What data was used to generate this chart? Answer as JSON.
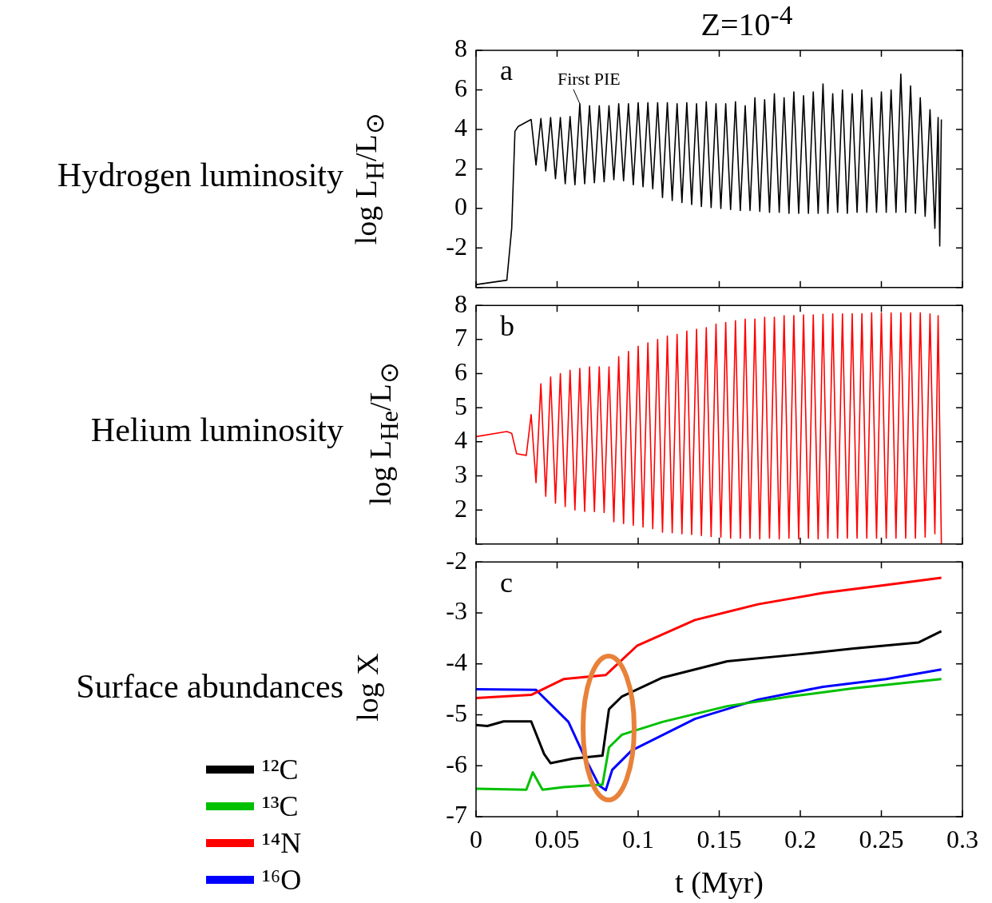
{
  "chart_data": [
    {
      "type": "line",
      "title": "Z=10$^{-4}$",
      "ylabel": "log L$_{H}$/L$_{⊙}$",
      "annotations": [
        "Hydrogen luminosity",
        "a",
        {
          "text": "First PIE",
          "x": 0.064,
          "y": 5.3
        }
      ],
      "xlim": [
        0,
        0.3
      ],
      "xticks": [
        0,
        0.05,
        0.1,
        0.15,
        0.2,
        0.25,
        0.3
      ],
      "ylim": [
        -4,
        8
      ],
      "yticks": [
        {
          "value": -4,
          "label": null
        },
        -2,
        0,
        2,
        4,
        6,
        8
      ],
      "tick_labels": "y",
      "series": [
        {
          "color": "#000000",
          "x": [
            0,
            0.019,
            0.022,
            0.024,
            0.026,
            0.031,
            0.034,
            0.037,
            0.04,
            0.043,
            0.046,
            0.049,
            0.052,
            0.055,
            0.058,
            0.061,
            0.064,
            0.067,
            0.07,
            0.073,
            0.076,
            0.079,
            0.082,
            0.085,
            0.088,
            0.091,
            0.094,
            0.097,
            0.1,
            0.103,
            0.106,
            0.109,
            0.112,
            0.115,
            0.118,
            0.121,
            0.124,
            0.127,
            0.13,
            0.133,
            0.136,
            0.139,
            0.142,
            0.145,
            0.148,
            0.151,
            0.154,
            0.157,
            0.16,
            0.163,
            0.166,
            0.169,
            0.172,
            0.175,
            0.178,
            0.181,
            0.184,
            0.187,
            0.19,
            0.193,
            0.196,
            0.199,
            0.202,
            0.205,
            0.208,
            0.211,
            0.214,
            0.217,
            0.22,
            0.223,
            0.226,
            0.229,
            0.232,
            0.235,
            0.238,
            0.241,
            0.244,
            0.247,
            0.25,
            0.253,
            0.256,
            0.259,
            0.262,
            0.265,
            0.268,
            0.271,
            0.274,
            0.277,
            0.28,
            0.283,
            0.285,
            0.286,
            0.287
          ],
          "values": [
            -3.85,
            -3.63,
            -1.0,
            3.9,
            4.15,
            4.37,
            4.5,
            2.2,
            4.55,
            1.9,
            4.6,
            1.5,
            4.6,
            1.25,
            4.65,
            1.2,
            5.3,
            1.25,
            5.2,
            1.3,
            5.2,
            1.35,
            5.2,
            1.45,
            5.3,
            1.4,
            5.3,
            1.2,
            5.35,
            1.1,
            5.35,
            1.0,
            5.35,
            0.55,
            5.35,
            0.4,
            5.3,
            0.3,
            5.35,
            0.2,
            5.3,
            0.1,
            5.4,
            0.05,
            5.3,
            0,
            5.3,
            -0.05,
            5.4,
            -0.1,
            5.2,
            -0.1,
            5.6,
            -0.15,
            5.5,
            -0.2,
            5.8,
            -0.2,
            5.6,
            -0.25,
            5.9,
            -0.25,
            5.7,
            -0.25,
            5.9,
            -0.25,
            6.3,
            -0.25,
            5.8,
            -0.2,
            6,
            -0.25,
            5.8,
            -0.2,
            6,
            -0.2,
            5.6,
            -0.2,
            5.9,
            -0.2,
            6,
            -0.2,
            6.8,
            -0.2,
            6.2,
            -0.25,
            5.6,
            -0.4,
            5,
            -1,
            4.6,
            -1.9,
            4.5
          ]
        }
      ]
    },
    {
      "type": "line",
      "ylabel": "log L$_{He}$/L$_{⊙}$",
      "annotations": [
        "Helium luminosity",
        "b"
      ],
      "xlim": [
        0,
        0.3
      ],
      "xticks": [
        0,
        0.05,
        0.1,
        0.15,
        0.2,
        0.25,
        0.3
      ],
      "ylim": [
        1,
        8
      ],
      "yticks": [
        {
          "value": 1,
          "label": null
        },
        2,
        3,
        4,
        5,
        6,
        7,
        8
      ],
      "tick_labels": "y",
      "series": [
        {
          "color": "#ff0000",
          "x": [
            0,
            0.019,
            0.022,
            0.025,
            0.031,
            0.034,
            0.037,
            0.04,
            0.043,
            0.046,
            0.049,
            0.052,
            0.055,
            0.058,
            0.061,
            0.064,
            0.067,
            0.07,
            0.073,
            0.076,
            0.079,
            0.082,
            0.085,
            0.088,
            0.091,
            0.094,
            0.097,
            0.1,
            0.103,
            0.106,
            0.109,
            0.112,
            0.115,
            0.118,
            0.121,
            0.124,
            0.127,
            0.13,
            0.133,
            0.136,
            0.139,
            0.142,
            0.145,
            0.148,
            0.151,
            0.154,
            0.157,
            0.16,
            0.163,
            0.166,
            0.169,
            0.172,
            0.175,
            0.178,
            0.181,
            0.184,
            0.187,
            0.19,
            0.193,
            0.196,
            0.199,
            0.202,
            0.205,
            0.208,
            0.211,
            0.214,
            0.217,
            0.22,
            0.223,
            0.226,
            0.229,
            0.232,
            0.235,
            0.238,
            0.241,
            0.244,
            0.247,
            0.25,
            0.253,
            0.256,
            0.259,
            0.262,
            0.265,
            0.268,
            0.271,
            0.274,
            0.277,
            0.28,
            0.283,
            0.285,
            0.287
          ],
          "values": [
            4.15,
            4.3,
            4.25,
            3.65,
            3.6,
            4.8,
            2.8,
            5.7,
            2.4,
            5.9,
            2.2,
            6.0,
            2.1,
            6.1,
            2.0,
            6.15,
            1.96,
            6.2,
            1.95,
            6.2,
            1.92,
            6.2,
            1.65,
            6.5,
            1.6,
            6.65,
            1.55,
            6.8,
            1.5,
            6.9,
            1.45,
            7.0,
            1.35,
            7.1,
            1.33,
            7.15,
            1.3,
            7.25,
            1.28,
            7.3,
            1.25,
            7.35,
            1.22,
            7.45,
            1.2,
            7.5,
            1.17,
            7.55,
            1.17,
            7.6,
            1.17,
            7.6,
            1.15,
            7.65,
            1.17,
            7.65,
            1.15,
            7.7,
            1.17,
            7.7,
            1.15,
            7.72,
            1.17,
            7.72,
            1.15,
            7.74,
            1.17,
            7.75,
            1.17,
            7.75,
            1.17,
            7.76,
            1.17,
            7.76,
            1.17,
            7.78,
            1.17,
            7.78,
            1.17,
            7.78,
            1.17,
            7.78,
            1.17,
            7.78,
            1.17,
            7.78,
            1.2,
            7.75,
            1.3,
            7.7,
            1.0
          ]
        }
      ]
    },
    {
      "type": "line",
      "xlabel": "t (Myr)",
      "ylabel": "log X",
      "annotations": [
        "Surface abundances",
        "c"
      ],
      "xlim": [
        0,
        0.3
      ],
      "xticks": [
        0,
        0.05,
        0.1,
        0.15,
        0.2,
        0.25,
        0.3
      ],
      "ylim": [
        -7,
        -2
      ],
      "yticks": [
        -7,
        -6,
        -5,
        -4,
        -3,
        -2
      ],
      "legend": "bottom left",
      "series": [
        {
          "name": "¹²C",
          "color": "#000000",
          "x": [
            0,
            0.007,
            0.017,
            0.034,
            0.042,
            0.046,
            0.06,
            0.078,
            0.082,
            0.09,
            0.115,
            0.155,
            0.194,
            0.233,
            0.273,
            0.287
          ],
          "values": [
            -5.2,
            -5.22,
            -5.13,
            -5.13,
            -5.77,
            -5.95,
            -5.86,
            -5.8,
            -4.89,
            -4.64,
            -4.27,
            -3.95,
            -3.83,
            -3.7,
            -3.58,
            -3.36
          ]
        },
        {
          "name": "¹³C",
          "color": "#00c000",
          "x": [
            0,
            0.031,
            0.035,
            0.041,
            0.054,
            0.078,
            0.082,
            0.09,
            0.115,
            0.155,
            0.194,
            0.233,
            0.287
          ],
          "values": [
            -6.45,
            -6.47,
            -6.13,
            -6.47,
            -6.42,
            -6.37,
            -5.64,
            -5.39,
            -5.14,
            -4.83,
            -4.64,
            -4.48,
            -4.3
          ]
        },
        {
          "name": "¹⁴N",
          "color": "#ff0000",
          "x": [
            0,
            0.034,
            0.054,
            0.08,
            0.0995,
            0.135,
            0.174,
            0.214,
            0.253,
            0.287
          ],
          "values": [
            -4.67,
            -4.61,
            -4.3,
            -4.22,
            -3.64,
            -3.14,
            -2.83,
            -2.61,
            -2.45,
            -2.31
          ]
        },
        {
          "name": "¹⁶O",
          "color": "#0000ff",
          "x": [
            0,
            0.037,
            0.057,
            0.067,
            0.076,
            0.08,
            0.084,
            0.096,
            0.135,
            0.174,
            0.214,
            0.253,
            0.287
          ],
          "values": [
            -4.5,
            -4.51,
            -5.14,
            -5.83,
            -6.39,
            -6.48,
            -6.08,
            -5.7,
            -5.08,
            -4.7,
            -4.45,
            -4.3,
            -4.11
          ]
        }
      ]
    }
  ]
}
